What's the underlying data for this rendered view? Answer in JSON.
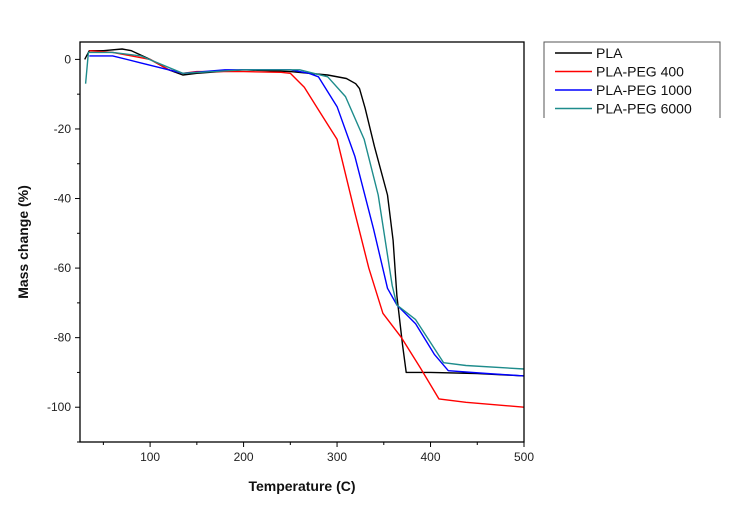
{
  "chart_data": {
    "type": "line",
    "title": "",
    "xlabel": "Temperature (C)",
    "ylabel": "Mass change (%)",
    "xlim": [
      25,
      500
    ],
    "ylim": [
      -110,
      5
    ],
    "xticks": [
      100,
      200,
      300,
      400,
      500
    ],
    "yticks": [
      0,
      -20,
      -40,
      -60,
      -80,
      -100
    ],
    "grid": false,
    "legend_position": "outside-top-right",
    "series": [
      {
        "name": "PLA",
        "color": "#000000",
        "x": [
          30,
          35,
          50,
          70,
          80,
          100,
          120,
          135,
          150,
          200,
          250,
          290,
          310,
          320,
          324,
          330,
          340,
          354,
          360,
          364,
          370,
          374,
          380,
          400,
          450,
          500
        ],
        "y": [
          0,
          2.5,
          2.5,
          3,
          2.5,
          0,
          -3,
          -4.5,
          -4,
          -3,
          -3.5,
          -4.5,
          -5.5,
          -7,
          -8.4,
          -14,
          -25,
          -39,
          -52,
          -68,
          -82,
          -90,
          -90,
          -90,
          -90.3,
          -91
        ]
      },
      {
        "name": "PLA-PEG 400",
        "color": "#ff0000",
        "x": [
          35,
          60,
          100,
          120,
          135,
          150,
          200,
          240,
          250,
          265,
          280,
          300,
          319,
          334,
          349,
          369,
          389,
          409,
          438,
          500
        ],
        "y": [
          2.5,
          2,
          0,
          -3,
          -4,
          -3.5,
          -3.5,
          -3.7,
          -4,
          -8,
          -14.5,
          -23,
          -44,
          -60,
          -73,
          -80,
          -88.6,
          -97.6,
          -98.6,
          -100
        ]
      },
      {
        "name": "PLA-PEG 1000",
        "color": "#0000ff",
        "x": [
          35,
          60,
          90,
          135,
          180,
          250,
          270,
          280,
          300,
          319,
          339,
          354,
          364,
          384,
          404,
          419,
          460,
          500
        ],
        "y": [
          1,
          1,
          -1,
          -4,
          -3,
          -3,
          -4,
          -5,
          -13.6,
          -27.8,
          -48.7,
          -65.8,
          -70.6,
          -76,
          -84.8,
          -89.5,
          -90.3,
          -91
        ]
      },
      {
        "name": "PLA-PEG 6000",
        "color": "#1e8c8c",
        "x": [
          31,
          34,
          60,
          90,
          135,
          200,
          260,
          290,
          309,
          329,
          344,
          359,
          364,
          384,
          399,
          414,
          438,
          500
        ],
        "y": [
          -7,
          2,
          2,
          1,
          -4,
          -3,
          -3,
          -5,
          -10.7,
          -23,
          -39,
          -65,
          -70.6,
          -74.8,
          -81,
          -87.2,
          -88,
          -89
        ]
      }
    ]
  }
}
